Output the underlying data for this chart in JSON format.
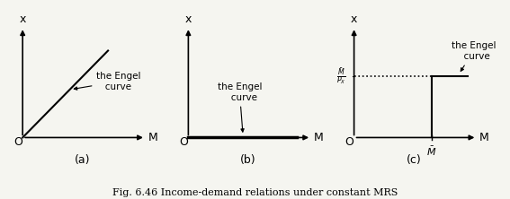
{
  "title": "Fig. 6.46 Income-demand relations under constant MRS",
  "panels": [
    "(a)",
    "(b)",
    "(c)"
  ],
  "bg_color": "#f5f5f0",
  "line_color": "#111111",
  "label_a": "the Engel\n  curve",
  "label_b": "the Engel\n  curve",
  "label_c": "the Engel\n  curve",
  "ylabel_label": "x",
  "xlabel_label": "M",
  "m_bar_label": "$\\bar{M}$",
  "mpx_label": "$\\frac{\\bar{M}}{P_X}$",
  "mbar_tick": "$\\bar{M}$",
  "origin_label": "O"
}
